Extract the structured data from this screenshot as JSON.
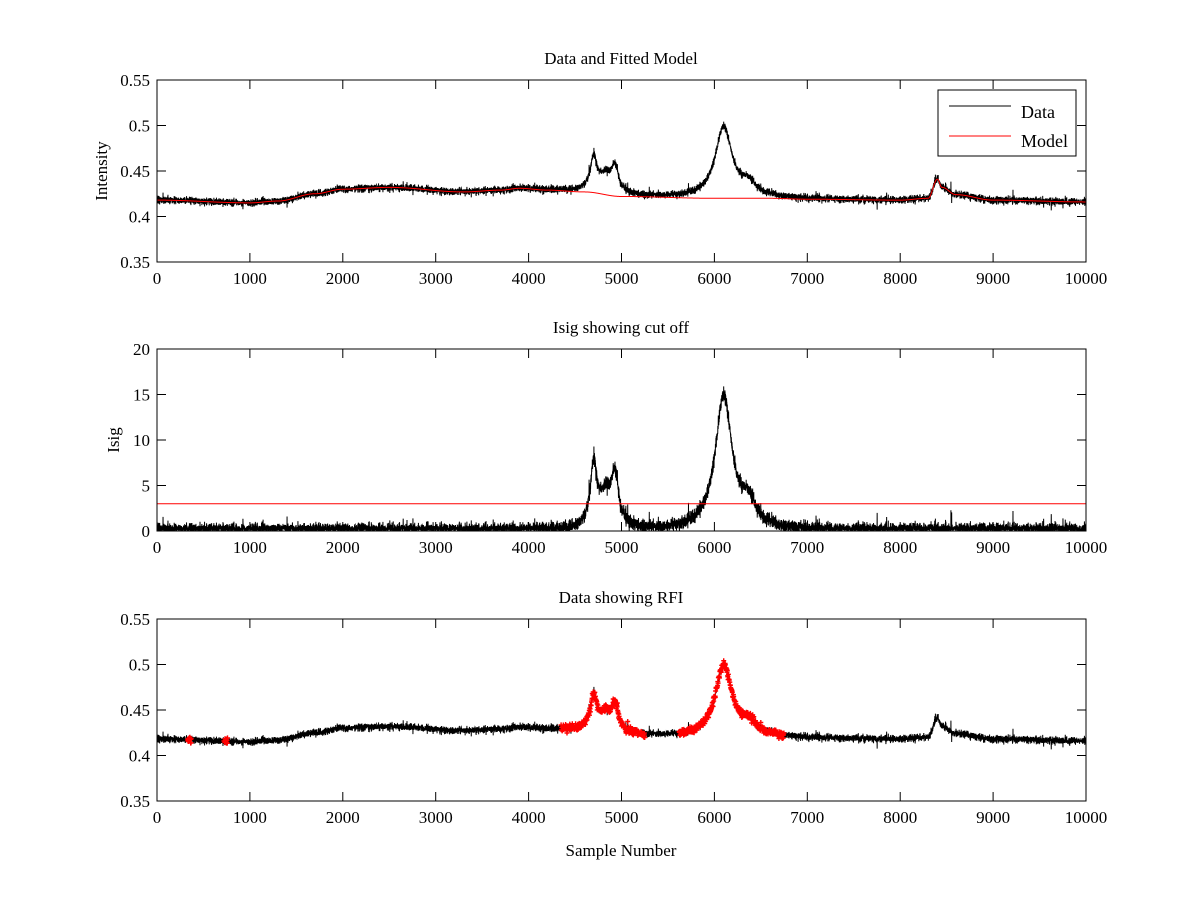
{
  "chart_data": [
    {
      "type": "line",
      "title": "Data and Fitted Model",
      "xlabel": "",
      "ylabel": "Intensity",
      "xlim": [
        0,
        10000
      ],
      "ylim": [
        0.35,
        0.55
      ],
      "xticks": [
        0,
        1000,
        2000,
        3000,
        4000,
        5000,
        6000,
        7000,
        8000,
        9000,
        10000
      ],
      "xtick_labels": [
        "0",
        "1000",
        "2000",
        "3000",
        "4000",
        "5000",
        "6000",
        "7000",
        "8000",
        "9000",
        "10000"
      ],
      "yticks": [
        0.35,
        0.4,
        0.45,
        0.5,
        0.55
      ],
      "ytick_labels": [
        "0.35",
        "0.4",
        "0.45",
        "0.5",
        "0.55"
      ],
      "grid": false,
      "legend": {
        "placement": "top-right",
        "entries": [
          {
            "name": "Data",
            "color": "#000000"
          },
          {
            "name": "Model",
            "color": "#ff0000"
          }
        ]
      },
      "series": [
        {
          "name": "Data",
          "color": "#000000"
        },
        {
          "name": "Model",
          "color": "#ff0000"
        }
      ]
    },
    {
      "type": "line",
      "title": "Isig showing cut off",
      "xlabel": "",
      "ylabel": "Isig",
      "xlim": [
        0,
        10000
      ],
      "ylim": [
        0,
        20
      ],
      "xticks": [
        0,
        1000,
        2000,
        3000,
        4000,
        5000,
        6000,
        7000,
        8000,
        9000,
        10000
      ],
      "xtick_labels": [
        "0",
        "1000",
        "2000",
        "3000",
        "4000",
        "5000",
        "6000",
        "7000",
        "8000",
        "9000",
        "10000"
      ],
      "yticks": [
        0,
        5,
        10,
        15,
        20
      ],
      "ytick_labels": [
        "0",
        "5",
        "10",
        "15",
        "20"
      ],
      "grid": false,
      "cutoff": 3,
      "cutoff_color": "#ff0000",
      "series": [
        {
          "name": "Isig",
          "color": "#000000"
        }
      ]
    },
    {
      "type": "line",
      "title": "Data showing RFI",
      "xlabel": "Sample Number",
      "ylabel": "",
      "xlim": [
        0,
        10000
      ],
      "ylim": [
        0.35,
        0.55
      ],
      "xticks": [
        0,
        1000,
        2000,
        3000,
        4000,
        5000,
        6000,
        7000,
        8000,
        9000,
        10000
      ],
      "xtick_labels": [
        "0",
        "1000",
        "2000",
        "3000",
        "4000",
        "5000",
        "6000",
        "7000",
        "8000",
        "9000",
        "10000"
      ],
      "yticks": [
        0.35,
        0.4,
        0.45,
        0.5,
        0.55
      ],
      "ytick_labels": [
        "0.35",
        "0.4",
        "0.45",
        "0.5",
        "0.55"
      ],
      "grid": false,
      "rfi_ranges": [
        [
          330,
          370
        ],
        [
          720,
          760
        ],
        [
          4350,
          5250
        ],
        [
          5620,
          6750
        ]
      ],
      "series": [
        {
          "name": "Data",
          "color": "#000000"
        },
        {
          "name": "RFI",
          "color": "#ff0000",
          "marker": "+"
        }
      ]
    }
  ],
  "signal": {
    "n_samples": 10000,
    "model_points": [
      [
        0,
        0.418
      ],
      [
        1000,
        0.415
      ],
      [
        1300,
        0.417
      ],
      [
        1700,
        0.425
      ],
      [
        2000,
        0.43
      ],
      [
        2500,
        0.432
      ],
      [
        3300,
        0.427
      ],
      [
        3700,
        0.429
      ],
      [
        3900,
        0.431
      ],
      [
        4200,
        0.429
      ],
      [
        4600,
        0.427
      ],
      [
        5000,
        0.422
      ],
      [
        6000,
        0.42
      ],
      [
        6600,
        0.42
      ],
      [
        7000,
        0.419
      ],
      [
        8000,
        0.418
      ],
      [
        8300,
        0.42
      ],
      [
        8400,
        0.441
      ],
      [
        8450,
        0.432
      ],
      [
        8600,
        0.424
      ],
      [
        9000,
        0.418
      ],
      [
        10000,
        0.416
      ]
    ],
    "peaks": [
      [
        4700,
        0.034,
        45
      ],
      [
        4830,
        0.018,
        90
      ],
      [
        4930,
        0.027,
        45
      ],
      [
        6100,
        0.078,
        110
      ],
      [
        6370,
        0.013,
        90
      ]
    ],
    "noise_sigma": 0.0028,
    "isig_sigma": 0.0053
  }
}
